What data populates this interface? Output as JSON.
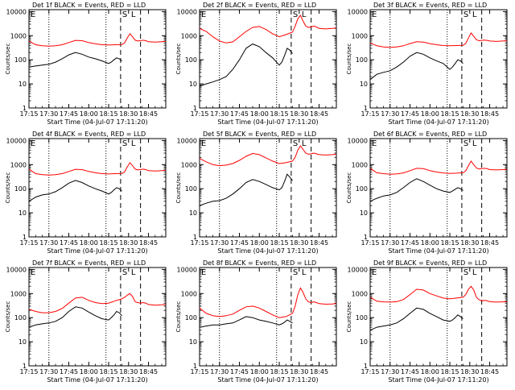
{
  "chart_data": {
    "type": "line",
    "ylabel": "Counts/sec",
    "xlabel": "Start Time (04-Jul-07 17:11:20)",
    "x_ticks": [
      "17:15",
      "17:30",
      "17:45",
      "18:00",
      "18:15",
      "18:30",
      "18:45"
    ],
    "x_tick_minutes": [
      0,
      15,
      30,
      45,
      60,
      75,
      90
    ],
    "xlim_minutes": [
      0,
      103
    ],
    "y_ticks": [
      "1",
      "10",
      "100",
      "1000",
      "10000"
    ],
    "y_tick_values": [
      1,
      10,
      100,
      1000,
      10000
    ],
    "ylim": [
      1,
      12000
    ],
    "y_scale": "log",
    "series_colors": {
      "events": "#000000",
      "lld": "#ff0000"
    },
    "markers": {
      "E": {
        "label": "E"
      },
      "S": {
        "label": "S"
      },
      "L": {
        "label": "L"
      }
    },
    "marker_minutes": {
      "dotted": [
        0,
        15,
        58
      ],
      "dashed_s": [
        69,
        84
      ]
    },
    "panels": [
      {
        "title": "Det 1f BLACK = Events, RED = LLD",
        "lld": {
          "x": [
            0,
            5,
            10,
            15,
            20,
            25,
            30,
            35,
            40,
            45,
            50,
            55,
            60,
            65,
            70,
            72,
            74,
            76,
            78,
            80,
            82,
            84,
            86,
            88,
            90,
            95,
            100,
            103
          ],
          "y": [
            600,
            420,
            380,
            370,
            380,
            420,
            520,
            640,
            620,
            520,
            460,
            420,
            410,
            420,
            430,
            500,
            800,
            1200,
            900,
            650,
            600,
            620,
            650,
            620,
            560,
            540,
            560,
            580
          ]
        },
        "events": {
          "x": [
            0,
            5,
            10,
            15,
            20,
            25,
            30,
            35,
            40,
            45,
            50,
            55,
            60,
            62,
            64,
            66,
            68,
            70
          ],
          "y": [
            50,
            55,
            60,
            65,
            80,
            110,
            160,
            200,
            170,
            130,
            110,
            90,
            70,
            80,
            100,
            120,
            110,
            90
          ]
        }
      },
      {
        "title": "Det 2f BLACK = Events, RED = LLD",
        "lld": {
          "x": [
            0,
            5,
            10,
            15,
            20,
            25,
            30,
            35,
            40,
            45,
            50,
            55,
            60,
            65,
            70,
            72,
            74,
            76,
            78,
            80,
            82,
            84,
            86,
            88,
            90,
            95,
            100,
            103
          ],
          "y": [
            2000,
            1500,
            900,
            600,
            500,
            550,
            900,
            1500,
            2200,
            2400,
            1800,
            1200,
            900,
            1100,
            1400,
            2500,
            5000,
            7000,
            4000,
            2500,
            2200,
            2300,
            2500,
            2300,
            2000,
            1900,
            2000,
            2100
          ]
        },
        "events": {
          "x": [
            0,
            5,
            10,
            15,
            20,
            25,
            30,
            35,
            40,
            45,
            50,
            55,
            60,
            62,
            64,
            66,
            68,
            70
          ],
          "y": [
            8,
            10,
            12,
            15,
            20,
            40,
            100,
            300,
            450,
            350,
            200,
            120,
            60,
            80,
            150,
            300,
            250,
            180
          ]
        }
      },
      {
        "title": "Det 3f BLACK = Events, RED = LLD",
        "lld": {
          "x": [
            0,
            5,
            10,
            15,
            20,
            25,
            30,
            35,
            40,
            45,
            50,
            55,
            60,
            65,
            70,
            72,
            74,
            76,
            78,
            80,
            82,
            84,
            86,
            88,
            90,
            95,
            100,
            103
          ],
          "y": [
            500,
            380,
            340,
            330,
            340,
            380,
            470,
            560,
            540,
            470,
            420,
            390,
            380,
            390,
            400,
            480,
            800,
            1300,
            950,
            680,
            620,
            640,
            660,
            640,
            600,
            580,
            600,
            620
          ]
        },
        "events": {
          "x": [
            0,
            5,
            10,
            15,
            20,
            25,
            30,
            35,
            40,
            45,
            50,
            55,
            60,
            62,
            64,
            66,
            68,
            70
          ],
          "y": [
            15,
            25,
            30,
            35,
            50,
            80,
            140,
            200,
            170,
            120,
            90,
            70,
            40,
            50,
            70,
            100,
            90,
            70
          ]
        }
      },
      {
        "title": "Det 4f BLACK = Events, RED = LLD",
        "lld": {
          "x": [
            0,
            5,
            10,
            15,
            20,
            25,
            30,
            35,
            40,
            45,
            50,
            55,
            60,
            65,
            70,
            72,
            74,
            76,
            78,
            80,
            82,
            84,
            86,
            88,
            90,
            95,
            100,
            103
          ],
          "y": [
            650,
            420,
            380,
            370,
            380,
            420,
            520,
            640,
            620,
            520,
            460,
            420,
            410,
            420,
            430,
            500,
            800,
            1200,
            900,
            650,
            600,
            620,
            650,
            620,
            560,
            540,
            560,
            580
          ]
        },
        "events": {
          "x": [
            0,
            5,
            10,
            15,
            20,
            25,
            30,
            35,
            40,
            45,
            50,
            55,
            60,
            62,
            64,
            66,
            68,
            70
          ],
          "y": [
            30,
            45,
            55,
            60,
            75,
            110,
            170,
            220,
            180,
            130,
            100,
            80,
            60,
            70,
            90,
            110,
            100,
            80
          ]
        }
      },
      {
        "title": "Det 5f BLACK = Events, RED = LLD",
        "lld": {
          "x": [
            0,
            5,
            10,
            15,
            20,
            25,
            30,
            35,
            40,
            45,
            50,
            55,
            60,
            65,
            70,
            72,
            74,
            76,
            78,
            80,
            82,
            84,
            86,
            88,
            90,
            95,
            100,
            103
          ],
          "y": [
            1800,
            1300,
            1000,
            900,
            950,
            1100,
            1500,
            2200,
            2900,
            2600,
            1900,
            1400,
            1100,
            1200,
            1400,
            2000,
            4000,
            6000,
            4200,
            3000,
            2700,
            2800,
            3000,
            2800,
            2600,
            2500,
            2600,
            2700
          ]
        },
        "events": {
          "x": [
            0,
            5,
            10,
            15,
            20,
            25,
            30,
            35,
            40,
            45,
            50,
            55,
            60,
            62,
            64,
            66,
            68,
            70
          ],
          "y": [
            20,
            25,
            30,
            32,
            40,
            60,
            100,
            180,
            240,
            200,
            150,
            110,
            90,
            110,
            200,
            400,
            300,
            220
          ]
        }
      },
      {
        "title": "Det 6f BLACK = Events, RED = LLD",
        "lld": {
          "x": [
            0,
            5,
            10,
            15,
            20,
            25,
            30,
            35,
            40,
            45,
            50,
            55,
            60,
            65,
            70,
            72,
            74,
            76,
            78,
            80,
            82,
            84,
            86,
            88,
            90,
            95,
            100,
            103
          ],
          "y": [
            700,
            460,
            420,
            400,
            410,
            450,
            560,
            700,
            680,
            560,
            490,
            450,
            430,
            440,
            460,
            550,
            900,
            1400,
            1000,
            720,
            660,
            680,
            700,
            680,
            620,
            600,
            620,
            640
          ]
        },
        "events": {
          "x": [
            0,
            5,
            10,
            15,
            20,
            25,
            30,
            35,
            40,
            45,
            50,
            55,
            60,
            62,
            64,
            66,
            68,
            70
          ],
          "y": [
            30,
            40,
            50,
            55,
            70,
            110,
            180,
            260,
            200,
            140,
            100,
            80,
            70,
            80,
            95,
            110,
            100,
            85
          ]
        }
      },
      {
        "title": "Det 7f BLACK = Events, RED = LLD",
        "lld": {
          "x": [
            0,
            5,
            10,
            15,
            20,
            25,
            30,
            35,
            40,
            45,
            50,
            55,
            60,
            65,
            70,
            72,
            74,
            76,
            78,
            80,
            82,
            84,
            86,
            88,
            90,
            95,
            100,
            103
          ],
          "y": [
            220,
            180,
            160,
            160,
            180,
            240,
            400,
            650,
            700,
            520,
            420,
            380,
            400,
            500,
            600,
            700,
            850,
            1000,
            750,
            450,
            420,
            400,
            420,
            400,
            350,
            330,
            340,
            350
          ]
        },
        "events": {
          "x": [
            0,
            5,
            10,
            15,
            20,
            25,
            30,
            35,
            40,
            45,
            50,
            55,
            60,
            62,
            64,
            66,
            68,
            70
          ],
          "y": [
            40,
            50,
            55,
            60,
            70,
            100,
            180,
            280,
            250,
            170,
            120,
            90,
            80,
            100,
            130,
            180,
            160,
            120
          ]
        }
      },
      {
        "title": "Det 8f BLACK = Events, RED = LLD",
        "lld": {
          "x": [
            0,
            5,
            10,
            15,
            20,
            25,
            30,
            35,
            40,
            45,
            50,
            55,
            60,
            65,
            70,
            72,
            74,
            76,
            78,
            80,
            82,
            84,
            86,
            88,
            90,
            95,
            100,
            103
          ],
          "y": [
            250,
            150,
            120,
            110,
            120,
            140,
            200,
            280,
            300,
            250,
            180,
            130,
            100,
            110,
            150,
            300,
            900,
            1700,
            1100,
            600,
            450,
            420,
            450,
            420,
            380,
            360,
            370,
            380
          ]
        },
        "events": {
          "x": [
            0,
            5,
            10,
            15,
            20,
            25,
            30,
            35,
            40,
            45,
            50,
            55,
            60,
            62,
            64,
            66,
            68,
            70
          ],
          "y": [
            40,
            45,
            50,
            50,
            55,
            60,
            80,
            110,
            100,
            80,
            70,
            60,
            50,
            55,
            65,
            80,
            70,
            60
          ]
        }
      },
      {
        "title": "Det 9f BLACK = Events, RED = LLD",
        "lld": {
          "x": [
            0,
            5,
            10,
            15,
            20,
            25,
            30,
            35,
            40,
            45,
            50,
            55,
            60,
            65,
            70,
            72,
            74,
            76,
            78,
            80,
            82,
            84,
            86,
            88,
            90,
            95,
            100,
            103
          ],
          "y": [
            700,
            480,
            450,
            440,
            460,
            560,
            900,
            1500,
            1400,
            1000,
            800,
            650,
            600,
            650,
            700,
            900,
            1500,
            2000,
            1400,
            700,
            550,
            500,
            520,
            500,
            460,
            440,
            450,
            460
          ]
        },
        "events": {
          "x": [
            0,
            5,
            10,
            15,
            20,
            25,
            30,
            35,
            40,
            45,
            50,
            55,
            60,
            62,
            64,
            66,
            68,
            70
          ],
          "y": [
            30,
            40,
            45,
            50,
            60,
            90,
            150,
            250,
            220,
            150,
            110,
            80,
            70,
            80,
            100,
            130,
            110,
            90
          ]
        }
      }
    ]
  }
}
